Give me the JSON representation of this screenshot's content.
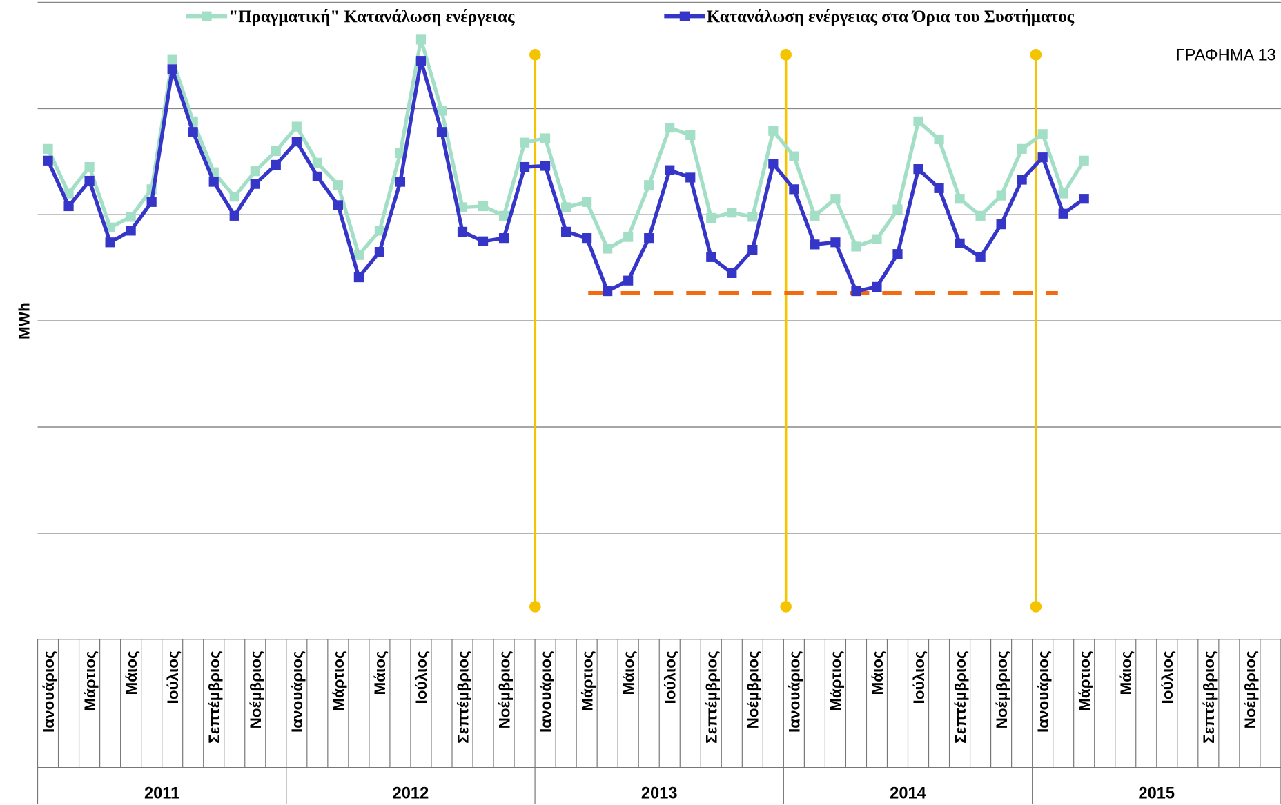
{
  "chart_data": {
    "type": "line",
    "title": "ΓΡΑΦΗΜΑ 13",
    "y_label": "MWh",
    "legend": "top",
    "grid": true,
    "ylim": [
      0,
      6
    ],
    "yticks": [
      1,
      2,
      3,
      4,
      5,
      6
    ],
    "categories": [
      "Ιανουάριος",
      null,
      "Μάρτιος",
      null,
      "Μάιος",
      null,
      "Ιούλιος",
      null,
      "Σεπτέμβριος",
      null,
      "Νοέμβριος",
      null,
      "Ιανουάριος",
      null,
      "Μάρτιος",
      null,
      "Μάιος",
      null,
      "Ιούλιος",
      null,
      "Σεπτέμβριος",
      null,
      "Νοέμβριος",
      null,
      "Ιανουάριος",
      null,
      "Μάρτιος",
      null,
      "Μάιος",
      null,
      "Ιούλιος",
      null,
      "Σεπτέμβριος",
      null,
      "Νοέμβριος",
      null,
      "Ιανουάριος",
      null,
      "Μάρτιος",
      null,
      "Μάιος",
      null,
      "Ιούλιος",
      null,
      "Σεπτέμβριος",
      null,
      "Νοέμβριος",
      null,
      "Ιανουάριος",
      null,
      "Μάρτιος",
      null,
      "Μάιος",
      null,
      "Ιούλιος",
      null,
      "Σεπτέμβριος",
      null,
      "Νοέμβριος",
      null
    ],
    "groups": [
      "2011",
      "2012",
      "2013",
      "2014",
      "2015"
    ],
    "series": [
      {
        "name": "\"Πραγματική\" Κατανάλωση ενέργειας",
        "color": "#a3dfc6",
        "values": [
          4.62,
          4.2,
          4.45,
          3.88,
          3.98,
          4.24,
          5.46,
          4.88,
          4.4,
          4.17,
          4.41,
          4.6,
          4.83,
          4.49,
          4.28,
          3.62,
          3.85,
          4.58,
          5.65,
          4.98,
          4.07,
          4.08,
          3.99,
          4.68,
          4.72,
          4.07,
          4.12,
          3.68,
          3.79,
          4.28,
          4.82,
          4.75,
          3.97,
          4.02,
          3.98,
          4.79,
          4.55,
          3.99,
          4.15,
          3.7,
          3.77,
          4.05,
          4.88,
          4.71,
          4.15,
          3.99,
          4.18,
          4.62,
          4.76,
          4.2,
          4.51,
          null,
          null,
          null,
          null,
          null,
          null,
          null,
          null,
          null
        ]
      },
      {
        "name": "Κατανάλωση ενέργειας στα Όρια του Συστήματος",
        "color": "#3535c8",
        "values": [
          4.51,
          4.08,
          4.32,
          3.74,
          3.85,
          4.12,
          5.37,
          4.78,
          4.31,
          3.99,
          4.29,
          4.47,
          4.69,
          4.36,
          4.09,
          3.41,
          3.65,
          4.31,
          5.45,
          4.78,
          3.84,
          3.75,
          3.78,
          4.45,
          4.46,
          3.84,
          3.78,
          3.28,
          3.38,
          3.78,
          4.42,
          4.35,
          3.6,
          3.45,
          3.67,
          4.48,
          4.24,
          3.72,
          3.74,
          3.28,
          3.32,
          3.63,
          4.43,
          4.25,
          3.73,
          3.6,
          3.91,
          4.33,
          4.54,
          4.01,
          4.15,
          null,
          null,
          null,
          null,
          null,
          null,
          null,
          null,
          null
        ]
      }
    ]
  }
}
